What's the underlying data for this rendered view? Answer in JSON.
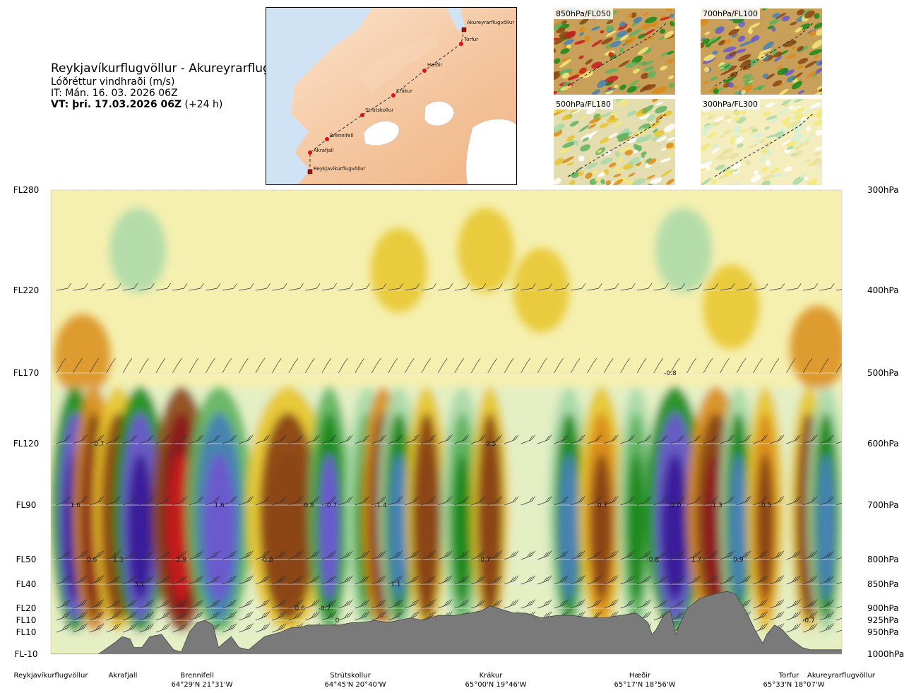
{
  "header": {
    "title": "Reykjavíkurflugvöllur - Akureyrarflugvöllur",
    "subtitle": "Lóðréttur vindhraði (m/s)",
    "it_line": "IT: Mán. 16. 03. 2026 06Z",
    "vt_bold": "VT: þri. 17.03.2026 06Z",
    "vt_extra": " (+24 h)"
  },
  "route_map": {
    "points": [
      {
        "name": "Akureyrarflugvöllur",
        "kind": "airport"
      },
      {
        "name": "Torfur",
        "kind": "waypoint"
      },
      {
        "name": "Hæðir",
        "kind": "waypoint"
      },
      {
        "name": "Krákur",
        "kind": "waypoint"
      },
      {
        "name": "Strútskollur",
        "kind": "waypoint"
      },
      {
        "name": "Brennifell",
        "kind": "waypoint"
      },
      {
        "name": "Akrafjall",
        "kind": "waypoint"
      },
      {
        "name": "Reykjavíkurflugvöllur",
        "kind": "airport"
      }
    ]
  },
  "level_maps": [
    {
      "label": "850hPa/FL050"
    },
    {
      "label": "700hPa/FL100"
    },
    {
      "label": "500hPa/FL180"
    },
    {
      "label": "300hPa/FL300"
    }
  ],
  "chart_data": {
    "type": "heatmap",
    "title": "Reykjavíkurflugvöllur - Akureyrarflugvöllur",
    "variable": "Lóðréttur vindhraði (m/s)",
    "x_axis": "distance along route",
    "y_axis_left": [
      "FL280",
      "FL220",
      "FL170",
      "FL120",
      "FL90",
      "FL50",
      "FL40",
      "FL20",
      "FL10",
      "FL10",
      "FL-10"
    ],
    "y_axis_right": [
      "300hPa",
      "400hPa",
      "500hPa",
      "600hPa",
      "700hPa",
      "800hPa",
      "850hPa",
      "900hPa",
      "925hPa",
      "950hPa",
      "1000hPa"
    ],
    "pressure_levels_hpa": [
      300,
      400,
      500,
      600,
      700,
      800,
      850,
      900,
      925,
      950,
      1000
    ],
    "color_scale": {
      "min": -2.0,
      "max": 2.0,
      "colors": [
        "#c41f1f",
        "#8b1a1a",
        "#8b4513",
        "#d98c1a",
        "#e8c42a",
        "#f4e87a",
        "#f5f0b0",
        "#ffffff",
        "#d6eed6",
        "#a8d8a8",
        "#5fb25f",
        "#1a8a1a",
        "#0a6a1a",
        "#4682b4",
        "#6a5acd",
        "#3a1a9a"
      ]
    },
    "locations": [
      {
        "name": "Reykjavíkurflugvöllur",
        "coord": ""
      },
      {
        "name": "Akrafjall",
        "coord": ""
      },
      {
        "name": "Brennifell",
        "coord": "64°29'N 21°31'W"
      },
      {
        "name": "Strútskollur",
        "coord": "64°45'N 20°40'W"
      },
      {
        "name": "Krákur",
        "coord": "65°00'N 19°46'W"
      },
      {
        "name": "Hæðir",
        "coord": "65°17'N 18°56'W"
      },
      {
        "name": "Torfur",
        "coord": "65°33'N 18°07'W"
      },
      {
        "name": "Akureyrarflugvöllur",
        "coord": ""
      }
    ],
    "annotations": [
      {
        "text": "0.7",
        "pressure": 600,
        "frac": 0.061
      },
      {
        "text": "1.6",
        "pressure": 700,
        "frac": 0.031
      },
      {
        "text": "0.6",
        "pressure": 800,
        "frac": 0.052
      },
      {
        "text": "1.3",
        "pressure": 800,
        "frac": 0.085
      },
      {
        "text": "3.1",
        "pressure": 850,
        "frac": 0.112
      },
      {
        "text": "2.9",
        "pressure": 800,
        "frac": 0.165
      },
      {
        "text": "1.6",
        "pressure": 700,
        "frac": 0.213
      },
      {
        "text": "-0.8",
        "pressure": 800,
        "frac": 0.273
      },
      {
        "text": "-0.8",
        "pressure": 700,
        "frac": 0.325
      },
      {
        "text": "-0.7",
        "pressure": 700,
        "frac": 0.354
      },
      {
        "text": "-1.4",
        "pressure": 700,
        "frac": 0.417
      },
      {
        "text": "0.6",
        "pressure": 900,
        "frac": 0.315
      },
      {
        "text": "-0.7",
        "pressure": 900,
        "frac": 0.346
      },
      {
        "text": "0",
        "pressure": 925,
        "frac": 0.362
      },
      {
        "text": "1.1",
        "pressure": 850,
        "frac": 0.436
      },
      {
        "text": "-0.5",
        "pressure": 600,
        "frac": 0.555
      },
      {
        "text": "-0.7",
        "pressure": 800,
        "frac": 0.548
      },
      {
        "text": "-0.7",
        "pressure": 700,
        "frac": 0.696
      },
      {
        "text": "-0.8",
        "pressure": 500,
        "frac": 0.783
      },
      {
        "text": "-0.8",
        "pressure": 800,
        "frac": 0.761
      },
      {
        "text": "-2.0",
        "pressure": 700,
        "frac": 0.789
      },
      {
        "text": "-1.3",
        "pressure": 700,
        "frac": 0.841
      },
      {
        "text": "1.7",
        "pressure": 800,
        "frac": 0.816
      },
      {
        "text": "-0.5",
        "pressure": 700,
        "frac": 0.903
      },
      {
        "text": "0.9",
        "pressure": 800,
        "frac": 0.869
      },
      {
        "text": "-0.7",
        "pressure": 925,
        "frac": 0.958
      }
    ],
    "colored_bands": [
      {
        "frac": 0.03,
        "vw": 0.011,
        "val": 2.0
      },
      {
        "frac": 0.055,
        "vw": 0.01,
        "val": -1.4
      },
      {
        "frac": 0.085,
        "vw": 0.012,
        "val": -1.0
      },
      {
        "frac": 0.113,
        "vw": 0.013,
        "val": 2.0
      },
      {
        "frac": 0.165,
        "vw": 0.014,
        "val": -2.0
      },
      {
        "frac": 0.213,
        "vw": 0.016,
        "val": 1.6
      },
      {
        "frac": 0.3,
        "vw": 0.02,
        "val": -1.0
      },
      {
        "frac": 0.352,
        "vw": 0.01,
        "val": 1.3
      },
      {
        "frac": 0.4,
        "vw": 0.01,
        "val": 0.8
      },
      {
        "frac": 0.42,
        "vw": 0.01,
        "val": -1.4
      },
      {
        "frac": 0.44,
        "vw": 0.01,
        "val": 1.1
      },
      {
        "frac": 0.475,
        "vw": 0.01,
        "val": -1.0
      },
      {
        "frac": 0.52,
        "vw": 0.01,
        "val": 0.8
      },
      {
        "frac": 0.555,
        "vw": 0.009,
        "val": -1.0
      },
      {
        "frac": 0.655,
        "vw": 0.01,
        "val": 1.0
      },
      {
        "frac": 0.696,
        "vw": 0.011,
        "val": -0.9
      },
      {
        "frac": 0.74,
        "vw": 0.008,
        "val": 0.8
      },
      {
        "frac": 0.789,
        "vw": 0.014,
        "val": 2.0
      },
      {
        "frac": 0.841,
        "vw": 0.014,
        "val": -1.4
      },
      {
        "frac": 0.869,
        "vw": 0.008,
        "val": 1.0
      },
      {
        "frac": 0.903,
        "vw": 0.008,
        "val": -0.8
      },
      {
        "frac": 0.958,
        "vw": 0.009,
        "val": -1.0
      },
      {
        "frac": 0.98,
        "vw": 0.008,
        "val": 1.0
      }
    ],
    "terrain_pressure_hpa": [
      [
        0.0,
        1000
      ],
      [
        0.06,
        1000
      ],
      [
        0.08,
        975
      ],
      [
        0.09,
        960
      ],
      [
        0.1,
        965
      ],
      [
        0.105,
        985
      ],
      [
        0.115,
        985
      ],
      [
        0.125,
        960
      ],
      [
        0.14,
        955
      ],
      [
        0.155,
        990
      ],
      [
        0.165,
        995
      ],
      [
        0.175,
        950
      ],
      [
        0.185,
        930
      ],
      [
        0.195,
        925
      ],
      [
        0.205,
        935
      ],
      [
        0.212,
        985
      ],
      [
        0.218,
        975
      ],
      [
        0.228,
        960
      ],
      [
        0.238,
        985
      ],
      [
        0.25,
        990
      ],
      [
        0.27,
        960
      ],
      [
        0.29,
        950
      ],
      [
        0.305,
        940
      ],
      [
        0.315,
        940
      ],
      [
        0.325,
        935
      ],
      [
        0.34,
        935
      ],
      [
        0.365,
        935
      ],
      [
        0.38,
        930
      ],
      [
        0.395,
        930
      ],
      [
        0.41,
        925
      ],
      [
        0.425,
        930
      ],
      [
        0.44,
        925
      ],
      [
        0.455,
        920
      ],
      [
        0.47,
        925
      ],
      [
        0.49,
        915
      ],
      [
        0.51,
        915
      ],
      [
        0.53,
        910
      ],
      [
        0.545,
        905
      ],
      [
        0.555,
        895
      ],
      [
        0.565,
        900
      ],
      [
        0.585,
        910
      ],
      [
        0.6,
        910
      ],
      [
        0.62,
        920
      ],
      [
        0.64,
        915
      ],
      [
        0.66,
        915
      ],
      [
        0.68,
        920
      ],
      [
        0.7,
        920
      ],
      [
        0.72,
        915
      ],
      [
        0.74,
        910
      ],
      [
        0.755,
        930
      ],
      [
        0.76,
        955
      ],
      [
        0.765,
        945
      ],
      [
        0.775,
        915
      ],
      [
        0.783,
        905
      ],
      [
        0.79,
        955
      ],
      [
        0.796,
        930
      ],
      [
        0.805,
        900
      ],
      [
        0.82,
        880
      ],
      [
        0.84,
        870
      ],
      [
        0.855,
        865
      ],
      [
        0.865,
        870
      ],
      [
        0.88,
        910
      ],
      [
        0.89,
        945
      ],
      [
        0.895,
        960
      ],
      [
        0.9,
        975
      ],
      [
        0.905,
        955
      ],
      [
        0.915,
        935
      ],
      [
        0.925,
        945
      ],
      [
        0.935,
        965
      ],
      [
        0.95,
        985
      ],
      [
        0.96,
        990
      ],
      [
        0.97,
        990
      ],
      [
        0.985,
        990
      ],
      [
        1.0,
        990
      ]
    ]
  }
}
